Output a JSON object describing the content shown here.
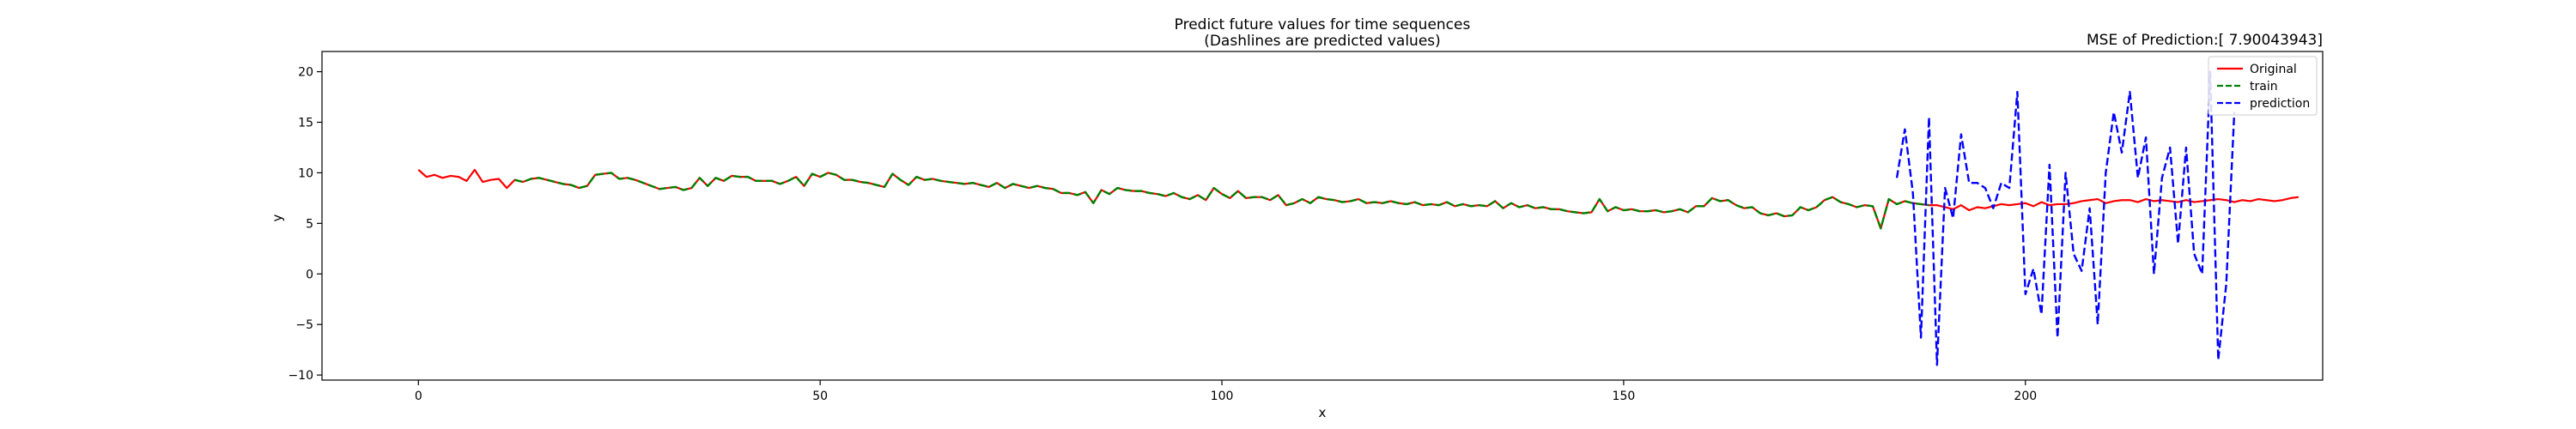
{
  "chart_data": {
    "type": "line",
    "title": "Predict future values for time sequences",
    "subtitle": "(Dashlines are predicted values)",
    "annotation": "MSE of Prediction:[ 7.90043943]",
    "xlabel": "x",
    "ylabel": "y",
    "xlim": [
      -12,
      237
    ],
    "ylim": [
      -10.5,
      22
    ],
    "xticks": [
      0,
      50,
      100,
      150,
      200
    ],
    "yticks": [
      -10,
      -5,
      0,
      5,
      10,
      15,
      20
    ],
    "grid": false,
    "legend_position": "top-right",
    "series": [
      {
        "name": "Original",
        "color": "#ff0000",
        "style": "solid",
        "x0": 0,
        "values": [
          10.3,
          9.6,
          9.8,
          9.5,
          9.7,
          9.6,
          9.2,
          10.3,
          9.1,
          9.3,
          9.4,
          8.5,
          9.3,
          9.1,
          9.4,
          9.5,
          9.3,
          9.1,
          8.9,
          8.8,
          8.5,
          8.7,
          9.8,
          9.9,
          10.0,
          9.4,
          9.5,
          9.3,
          9.0,
          8.7,
          8.4,
          8.5,
          8.6,
          8.3,
          8.5,
          9.5,
          8.7,
          9.5,
          9.2,
          9.7,
          9.6,
          9.6,
          9.2,
          9.2,
          9.2,
          8.9,
          9.2,
          9.6,
          8.7,
          9.9,
          9.6,
          10.0,
          9.8,
          9.3,
          9.3,
          9.1,
          9.0,
          8.8,
          8.6,
          9.9,
          9.3,
          8.8,
          9.6,
          9.3,
          9.4,
          9.2,
          9.1,
          9.0,
          8.9,
          9.0,
          8.8,
          8.6,
          9.0,
          8.5,
          8.9,
          8.7,
          8.5,
          8.7,
          8.5,
          8.4,
          8.0,
          8.0,
          7.8,
          8.1,
          7.0,
          8.3,
          7.9,
          8.5,
          8.3,
          8.2,
          8.2,
          8.0,
          7.9,
          7.7,
          8.0,
          7.6,
          7.4,
          7.8,
          7.3,
          8.5,
          7.9,
          7.5,
          8.2,
          7.5,
          7.6,
          7.6,
          7.3,
          7.8,
          6.8,
          7.0,
          7.4,
          7.0,
          7.6,
          7.4,
          7.3,
          7.1,
          7.2,
          7.4,
          7.0,
          7.1,
          7.0,
          7.2,
          7.0,
          6.9,
          7.1,
          6.8,
          6.9,
          6.8,
          7.1,
          6.7,
          6.9,
          6.7,
          6.8,
          6.7,
          7.2,
          6.5,
          7.0,
          6.6,
          6.8,
          6.5,
          6.6,
          6.4,
          6.4,
          6.2,
          6.1,
          6.0,
          6.1,
          7.4,
          6.2,
          6.6,
          6.3,
          6.4,
          6.2,
          6.2,
          6.3,
          6.1,
          6.2,
          6.4,
          6.1,
          6.7,
          6.7,
          7.5,
          7.2,
          7.3,
          6.8,
          6.5,
          6.6,
          6.0,
          5.8,
          6.0,
          5.7,
          5.8,
          6.6,
          6.3,
          6.6,
          7.3,
          7.6,
          7.1,
          6.9,
          6.6,
          6.8,
          6.7,
          4.5,
          7.4,
          6.9,
          7.2,
          7.0,
          6.9,
          6.8,
          6.8,
          6.6,
          6.4,
          6.8,
          6.3,
          6.6,
          6.5,
          6.7,
          6.9,
          6.8,
          6.9,
          7.0,
          6.7,
          7.1,
          6.8,
          6.9,
          6.9,
          7.0,
          7.2,
          7.3,
          7.4,
          7.0,
          7.2,
          7.3,
          7.3,
          7.1,
          7.4,
          7.2,
          7.3,
          7.2,
          7.1,
          7.3,
          7.1,
          7.2,
          7.3,
          7.4,
          7.3,
          7.1,
          7.3,
          7.2,
          7.4,
          7.3,
          7.2,
          7.3,
          7.5,
          7.6
        ]
      },
      {
        "name": "train",
        "color": "#008000",
        "style": "dashed",
        "x0": 12,
        "values": [
          9.3,
          9.1,
          9.4,
          9.5,
          9.3,
          9.1,
          8.9,
          8.8,
          8.5,
          8.7,
          9.8,
          9.9,
          10.0,
          9.4,
          9.5,
          9.3,
          9.0,
          8.7,
          8.4,
          8.5,
          8.6,
          8.3,
          8.5,
          9.5,
          8.7,
          9.5,
          9.2,
          9.7,
          9.6,
          9.6,
          9.2,
          9.2,
          9.2,
          8.9,
          9.2,
          9.6,
          8.7,
          9.9,
          9.6,
          10.0,
          9.8,
          9.3,
          9.3,
          9.1,
          9.0,
          8.8,
          8.6,
          9.9,
          9.3,
          8.8,
          9.6,
          9.3,
          9.4,
          9.2,
          9.1,
          9.0,
          8.9,
          9.0,
          8.8,
          8.6,
          9.0,
          8.5,
          8.9,
          8.7,
          8.5,
          8.7,
          8.5,
          8.4,
          8.0,
          8.0,
          7.8,
          8.1,
          7.0,
          8.3,
          7.9,
          8.5,
          8.3,
          8.2,
          8.2,
          8.0,
          7.9,
          7.7,
          8.0,
          7.6,
          7.4,
          7.8,
          7.3,
          8.5,
          7.9,
          7.5,
          8.2,
          7.5,
          7.6,
          7.6,
          7.3,
          7.8,
          6.8,
          7.0,
          7.4,
          7.0,
          7.6,
          7.4,
          7.3,
          7.1,
          7.2,
          7.4,
          7.0,
          7.1,
          7.0,
          7.2,
          7.0,
          6.9,
          7.1,
          6.8,
          6.9,
          6.8,
          7.1,
          6.7,
          6.9,
          6.7,
          6.8,
          6.7,
          7.2,
          6.5,
          7.0,
          6.6,
          6.8,
          6.5,
          6.6,
          6.4,
          6.4,
          6.2,
          6.1,
          6.0,
          6.1,
          7.4,
          6.2,
          6.6,
          6.3,
          6.4,
          6.2,
          6.2,
          6.3,
          6.1,
          6.2,
          6.4,
          6.1,
          6.7,
          6.7,
          7.5,
          7.2,
          7.3,
          6.8,
          6.5,
          6.6,
          6.0,
          5.8,
          6.0,
          5.7,
          5.8,
          6.6,
          6.3,
          6.6,
          7.3,
          7.6,
          7.1,
          6.9,
          6.6,
          6.8,
          6.7,
          4.5,
          7.4,
          6.9,
          7.2,
          7.0,
          6.9,
          6.8
        ]
      },
      {
        "name": "prediction",
        "color": "#0000ff",
        "style": "dashed",
        "x0": 184,
        "values": [
          9.5,
          14.3,
          8.0,
          -6.3,
          15.5,
          -9.0,
          8.5,
          5.5,
          13.8,
          9.0,
          9.0,
          8.5,
          6.5,
          9.0,
          8.5,
          18.0,
          -2.0,
          0.5,
          -4.0,
          10.8,
          -6.3,
          10.0,
          2.0,
          0.3,
          6.5,
          -5.0,
          10.0,
          16.0,
          12.0,
          18.0,
          9.5,
          13.5,
          0.0,
          9.5,
          12.5,
          3.0,
          12.5,
          2.0,
          0.0,
          20.0,
          -8.5,
          -1.0,
          16.0
        ]
      }
    ]
  }
}
